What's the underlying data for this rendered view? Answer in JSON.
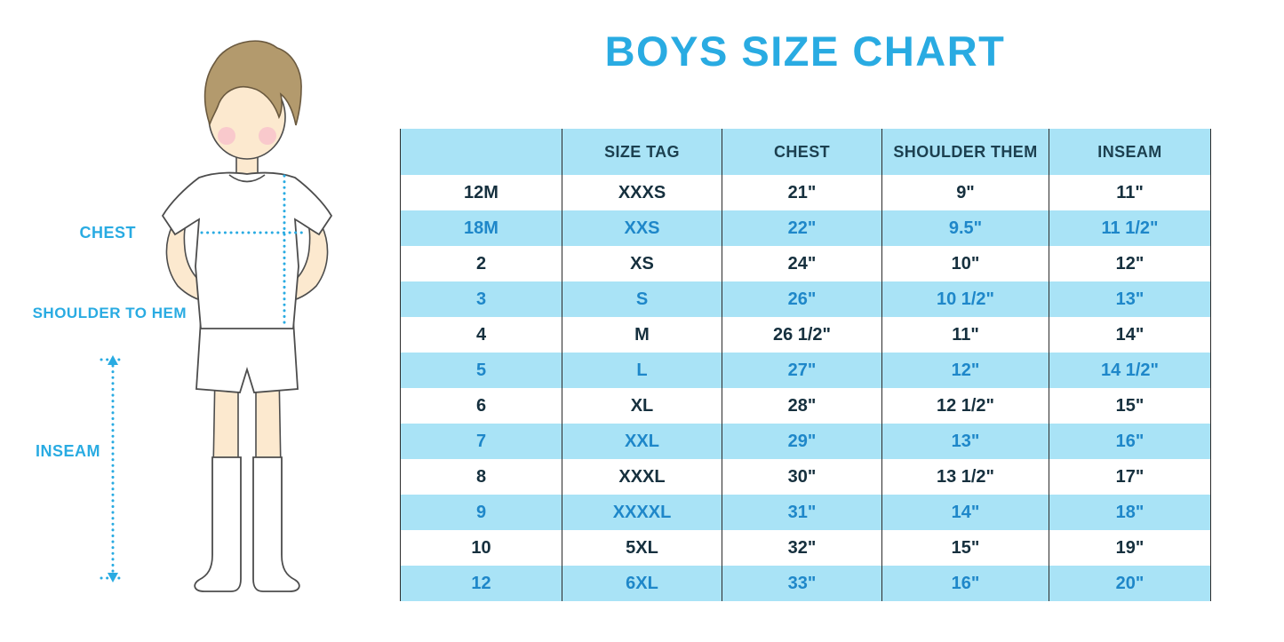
{
  "title": "BOYS SIZE CHART",
  "colors": {
    "title": "#29ABE2",
    "stripe": "#A9E3F6",
    "header_text": "#1C4050",
    "row_text_dark": "#16303E",
    "row_text_blue": "#1E87C9",
    "border": "#2B2B2B",
    "measure": "#29ABE2",
    "skin": "#FCE9CF",
    "hair": "#B39A6D",
    "hair_outline": "#6A593F",
    "cheek": "#F8C3CB",
    "outline": "#4D4D4D"
  },
  "figure_labels": {
    "chest": "CHEST",
    "shoulder_to_hem": "SHOULDER TO HEM",
    "inseam": "INSEAM"
  },
  "chart_data": {
    "type": "table",
    "columns": [
      "",
      "SIZE TAG",
      "CHEST",
      "SHOULDER THEM",
      "INSEAM"
    ],
    "rows": [
      [
        "12M",
        "XXXS",
        "21\"",
        "9\"",
        "11\""
      ],
      [
        "18M",
        "XXS",
        "22\"",
        "9.5\"",
        "11 1/2\""
      ],
      [
        "2",
        "XS",
        "24\"",
        "10\"",
        "12\""
      ],
      [
        "3",
        "S",
        "26\"",
        "10 1/2\"",
        "13\""
      ],
      [
        "4",
        "M",
        "26 1/2\"",
        "11\"",
        "14\""
      ],
      [
        "5",
        "L",
        "27\"",
        "12\"",
        "14 1/2\""
      ],
      [
        "6",
        "XL",
        "28\"",
        "12 1/2\"",
        "15\""
      ],
      [
        "7",
        "XXL",
        "29\"",
        "13\"",
        "16\""
      ],
      [
        "8",
        "XXXL",
        "30\"",
        "13 1/2\"",
        "17\""
      ],
      [
        "9",
        "XXXXL",
        "31\"",
        "14\"",
        "18\""
      ],
      [
        "10",
        "5XL",
        "32\"",
        "15\"",
        "19\""
      ],
      [
        "12",
        "6XL",
        "33\"",
        "16\"",
        "20\""
      ]
    ]
  }
}
